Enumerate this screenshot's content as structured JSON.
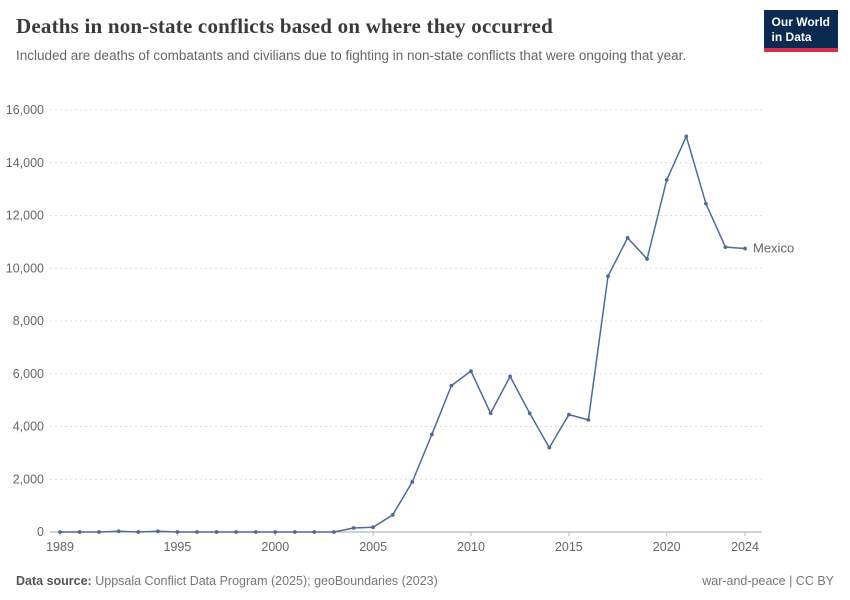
{
  "header": {
    "title": "Deaths in non-state conflicts based on where they occurred",
    "subtitle": "Included are deaths of combatants and civilians due to fighting in non-state conflicts that were ongoing that year.",
    "logo": {
      "line1": "Our World",
      "line2": "in Data"
    }
  },
  "chart_data": {
    "type": "line",
    "title": "Deaths in non-state conflicts based on where they occurred",
    "xlabel": "",
    "ylabel": "",
    "xlim": [
      1989,
      2024
    ],
    "ylim": [
      0,
      16000
    ],
    "x_ticks": [
      1989,
      1995,
      2000,
      2005,
      2010,
      2015,
      2020,
      2024
    ],
    "y_ticks": [
      0,
      2000,
      4000,
      6000,
      8000,
      10000,
      12000,
      14000,
      16000
    ],
    "grid": "horizontal-dashed",
    "legend_position": "end-of-line",
    "x": [
      1989,
      1990,
      1991,
      1992,
      1993,
      1994,
      1995,
      1996,
      1997,
      1998,
      1999,
      2000,
      2001,
      2002,
      2003,
      2004,
      2005,
      2006,
      2007,
      2008,
      2009,
      2010,
      2011,
      2012,
      2013,
      2014,
      2015,
      2016,
      2017,
      2018,
      2019,
      2020,
      2021,
      2022,
      2023,
      2024
    ],
    "series": [
      {
        "name": "Mexico",
        "color": "#4C6A9C",
        "values": [
          0,
          0,
          0,
          25,
          0,
          25,
          0,
          0,
          0,
          0,
          0,
          0,
          0,
          0,
          0,
          150,
          180,
          650,
          1900,
          3700,
          5550,
          6100,
          4500,
          5900,
          4500,
          3200,
          4450,
          4250,
          9700,
          11150,
          10350,
          13350,
          15000,
          12450,
          10800,
          10750
        ]
      }
    ]
  },
  "footer": {
    "source_label": "Data source:",
    "source_text": "Uppsala Conflict Data Program (2025); geoBoundaries (2023)",
    "right_text": "war-and-peace | CC BY"
  }
}
